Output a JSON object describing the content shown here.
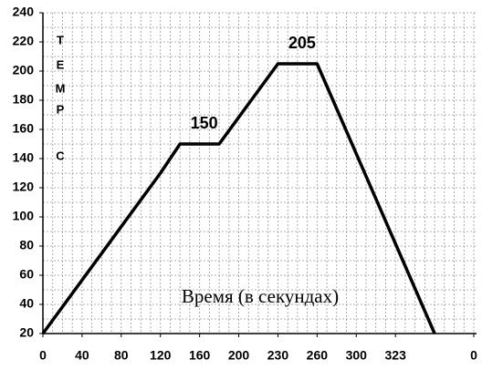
{
  "chart_data": {
    "type": "line",
    "x_label": "Время (в секундах)",
    "y_label_letters": [
      "Т",
      "Е",
      "М",
      "Р",
      "С"
    ],
    "annotations": [
      {
        "text": "150",
        "x": 160,
        "y": 150
      },
      {
        "text": "205",
        "x": 260,
        "y": 205
      }
    ],
    "x": [
      0,
      120,
      140,
      180,
      240,
      280,
      400
    ],
    "series": [
      {
        "name": "T",
        "color": "#000000",
        "values": [
          20,
          130,
          150,
          150,
          205,
          205,
          20
        ]
      }
    ],
    "xlim": [
      0,
      440
    ],
    "ylim": [
      20,
      240
    ],
    "xticks": [
      0,
      40,
      80,
      120,
      160,
      200,
      {
        "value": 240,
        "label": "230"
      },
      {
        "value": 280,
        "label": "260"
      },
      {
        "value": 320,
        "label": "300"
      },
      {
        "value": 360,
        "label": "323"
      },
      {
        "value": 440,
        "label": "0"
      }
    ],
    "yticks": [
      20,
      40,
      60,
      80,
      100,
      120,
      140,
      160,
      180,
      200,
      220,
      240
    ],
    "grid": true,
    "minor_step": 10
  }
}
